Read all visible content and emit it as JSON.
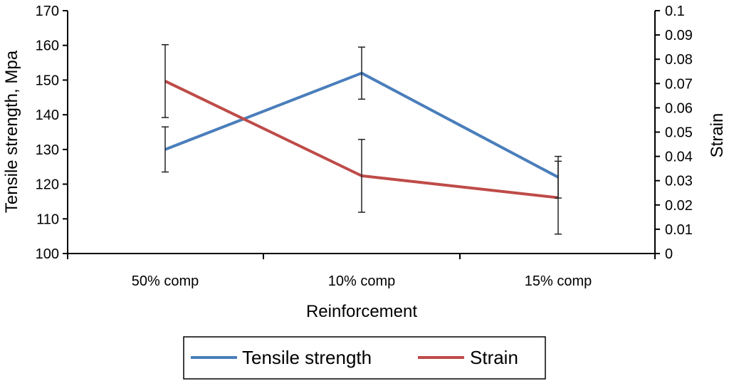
{
  "chart_data": {
    "type": "line",
    "title": "",
    "categories": [
      "50% comp",
      "10% comp",
      "15% comp"
    ],
    "xlabel": "Reinforcement",
    "ylabel_left": "Tensile strength, Mpa",
    "ylabel_right": "Strain",
    "ylim_left": [
      100,
      170
    ],
    "ylim_right": [
      0,
      0.1
    ],
    "yticks_left": [
      "100",
      "110",
      "120",
      "130",
      "140",
      "150",
      "160",
      "170"
    ],
    "yticks_right": [
      "0",
      "0.01",
      "0.02",
      "0.03",
      "0.04",
      "0.05",
      "0.06",
      "0.07",
      "0.08",
      "0.09",
      "0.1"
    ],
    "series": [
      {
        "name": "Tensile strength",
        "axis": "left",
        "color": "#4a7ebb",
        "values": [
          130,
          152,
          122
        ],
        "error_low": [
          123.5,
          144.5,
          116
        ],
        "error_high": [
          136.5,
          159.5,
          128
        ]
      },
      {
        "name": "Strain",
        "axis": "right",
        "color": "#be4b48",
        "values": [
          0.071,
          0.032,
          0.023
        ],
        "error_low": [
          0.056,
          0.017,
          0.008
        ],
        "error_high": [
          0.086,
          0.047,
          0.038
        ]
      }
    ],
    "legend_position": "bottom"
  }
}
